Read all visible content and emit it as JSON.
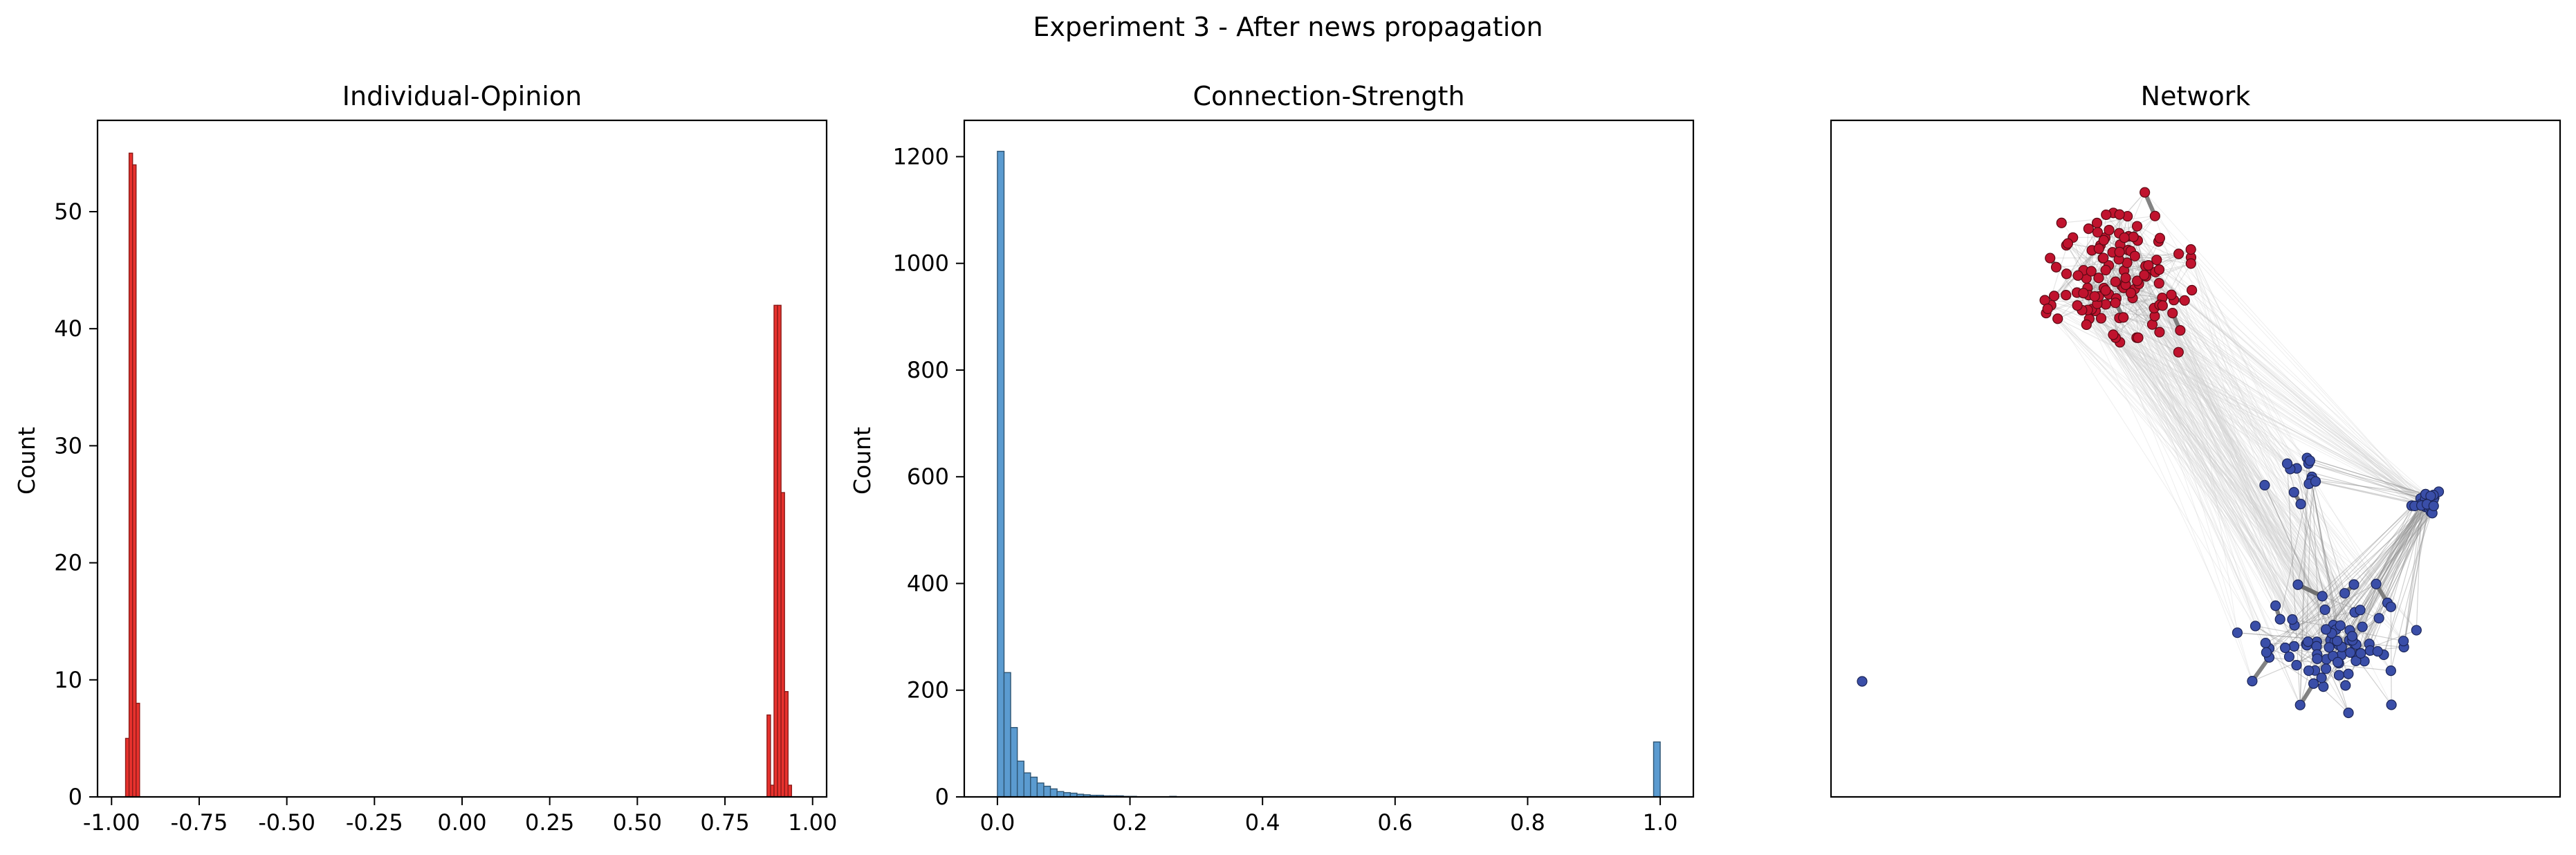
{
  "figure_title": "Experiment 3 - After news propagation",
  "chart_data": [
    {
      "type": "histogram",
      "title": "Individual-Opinion",
      "xlabel": "",
      "ylabel": "Count",
      "xlim": [
        -1.04,
        1.04
      ],
      "ylim": [
        0,
        57.8
      ],
      "xticks": [
        "-1.00",
        "-0.75",
        "-0.50",
        "-0.25",
        "0.00",
        "0.25",
        "0.50",
        "0.75",
        "1.00"
      ],
      "xtick_values": [
        -1.0,
        -0.75,
        -0.5,
        -0.25,
        0.0,
        0.25,
        0.5,
        0.75,
        1.0
      ],
      "yticks": [
        "0",
        "10",
        "20",
        "30",
        "40",
        "50"
      ],
      "ytick_values": [
        0,
        10,
        20,
        30,
        40,
        50
      ],
      "bar_color": "#e8322e",
      "bar_edge": "#8a1a18",
      "bins": [
        {
          "x": -0.96,
          "count": 5
        },
        {
          "x": -0.95,
          "count": 55
        },
        {
          "x": -0.94,
          "count": 54
        },
        {
          "x": -0.93,
          "count": 8
        },
        {
          "x": 0.87,
          "count": 7
        },
        {
          "x": 0.88,
          "count": 1
        },
        {
          "x": 0.89,
          "count": 42
        },
        {
          "x": 0.9,
          "count": 42
        },
        {
          "x": 0.91,
          "count": 26
        },
        {
          "x": 0.92,
          "count": 9
        },
        {
          "x": 0.93,
          "count": 1
        }
      ],
      "bin_width": 0.01
    },
    {
      "type": "histogram",
      "title": "Connection-Strength",
      "xlabel": "",
      "ylabel": "Count",
      "xlim": [
        -0.05,
        1.05
      ],
      "ylim": [
        0,
        1268
      ],
      "xticks": [
        "0.0",
        "0.2",
        "0.4",
        "0.6",
        "0.8",
        "1.0"
      ],
      "xtick_values": [
        0.0,
        0.2,
        0.4,
        0.6,
        0.8,
        1.0
      ],
      "yticks": [
        "0",
        "200",
        "400",
        "600",
        "800",
        "1000",
        "1200"
      ],
      "ytick_values": [
        0,
        200,
        400,
        600,
        800,
        1000,
        1200
      ],
      "bar_color": "#5b9bd0",
      "bar_edge": "#2e5573",
      "bin_width": 0.01,
      "bins": [
        {
          "x": 0.0,
          "count": 1210
        },
        {
          "x": 0.01,
          "count": 233
        },
        {
          "x": 0.02,
          "count": 130
        },
        {
          "x": 0.03,
          "count": 67
        },
        {
          "x": 0.04,
          "count": 45
        },
        {
          "x": 0.05,
          "count": 37
        },
        {
          "x": 0.06,
          "count": 26
        },
        {
          "x": 0.07,
          "count": 20
        },
        {
          "x": 0.08,
          "count": 15
        },
        {
          "x": 0.09,
          "count": 10
        },
        {
          "x": 0.1,
          "count": 8
        },
        {
          "x": 0.11,
          "count": 7
        },
        {
          "x": 0.12,
          "count": 5
        },
        {
          "x": 0.13,
          "count": 4
        },
        {
          "x": 0.14,
          "count": 3
        },
        {
          "x": 0.15,
          "count": 3
        },
        {
          "x": 0.16,
          "count": 2
        },
        {
          "x": 0.17,
          "count": 2
        },
        {
          "x": 0.18,
          "count": 2
        },
        {
          "x": 0.19,
          "count": 1
        },
        {
          "x": 0.2,
          "count": 1
        },
        {
          "x": 0.26,
          "count": 1
        },
        {
          "x": 0.99,
          "count": 103
        }
      ]
    },
    {
      "type": "network",
      "title": "Network",
      "node_colors": {
        "group_a": "#c0132e",
        "group_b": "#3a4ea8"
      },
      "edge_color": "#8c8c8c",
      "strong_edge_color": "#6e6e6e",
      "group_a_size": 120,
      "group_b_size": 125
    }
  ]
}
